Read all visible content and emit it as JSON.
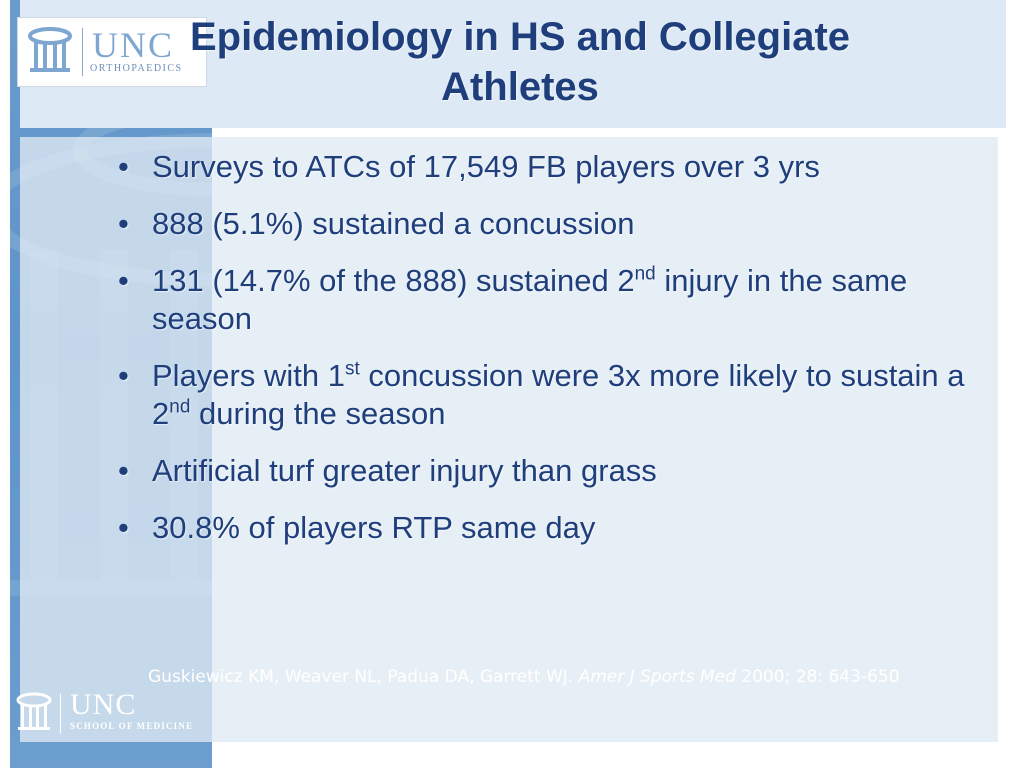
{
  "slide": {
    "title": "Epidemiology in HS and Collegiate Athletes",
    "bullets": [
      {
        "parts": [
          "Surveys to ATCs of 17,549 FB players over 3 yrs"
        ]
      },
      {
        "parts": [
          "888 (5.1%) sustained a concussion"
        ]
      },
      {
        "parts": [
          "131 (14.7% of the 888) sustained 2",
          "nd",
          " injury in the same season"
        ]
      },
      {
        "parts": [
          "Players with 1",
          "st",
          " concussion were 3x more likely to sustain a 2",
          "nd",
          " during the season"
        ]
      },
      {
        "parts": [
          "Artificial turf greater injury than grass"
        ]
      },
      {
        "parts": [
          "30.8% of players RTP same day"
        ]
      }
    ],
    "citation": {
      "authors": "Guskiewicz KM, Weaver NL, Padua DA, Garrett WJ. ",
      "journal": "Amer J Sports Med",
      "details": " 2000; 28: 643-650"
    }
  },
  "logos": {
    "top": {
      "mark": "UNC",
      "dept": "ORTHOPAEDICS",
      "icon": "old-well-icon"
    },
    "bottom": {
      "mark": "UNC",
      "dept": "SCHOOL OF MEDICINE",
      "icon": "old-well-icon"
    }
  },
  "colors": {
    "title": "#1f3e7c",
    "text": "#1f3e7c",
    "left_band": "#5f94c8",
    "panel": "#dde9f4",
    "citation": "#ffffff"
  }
}
